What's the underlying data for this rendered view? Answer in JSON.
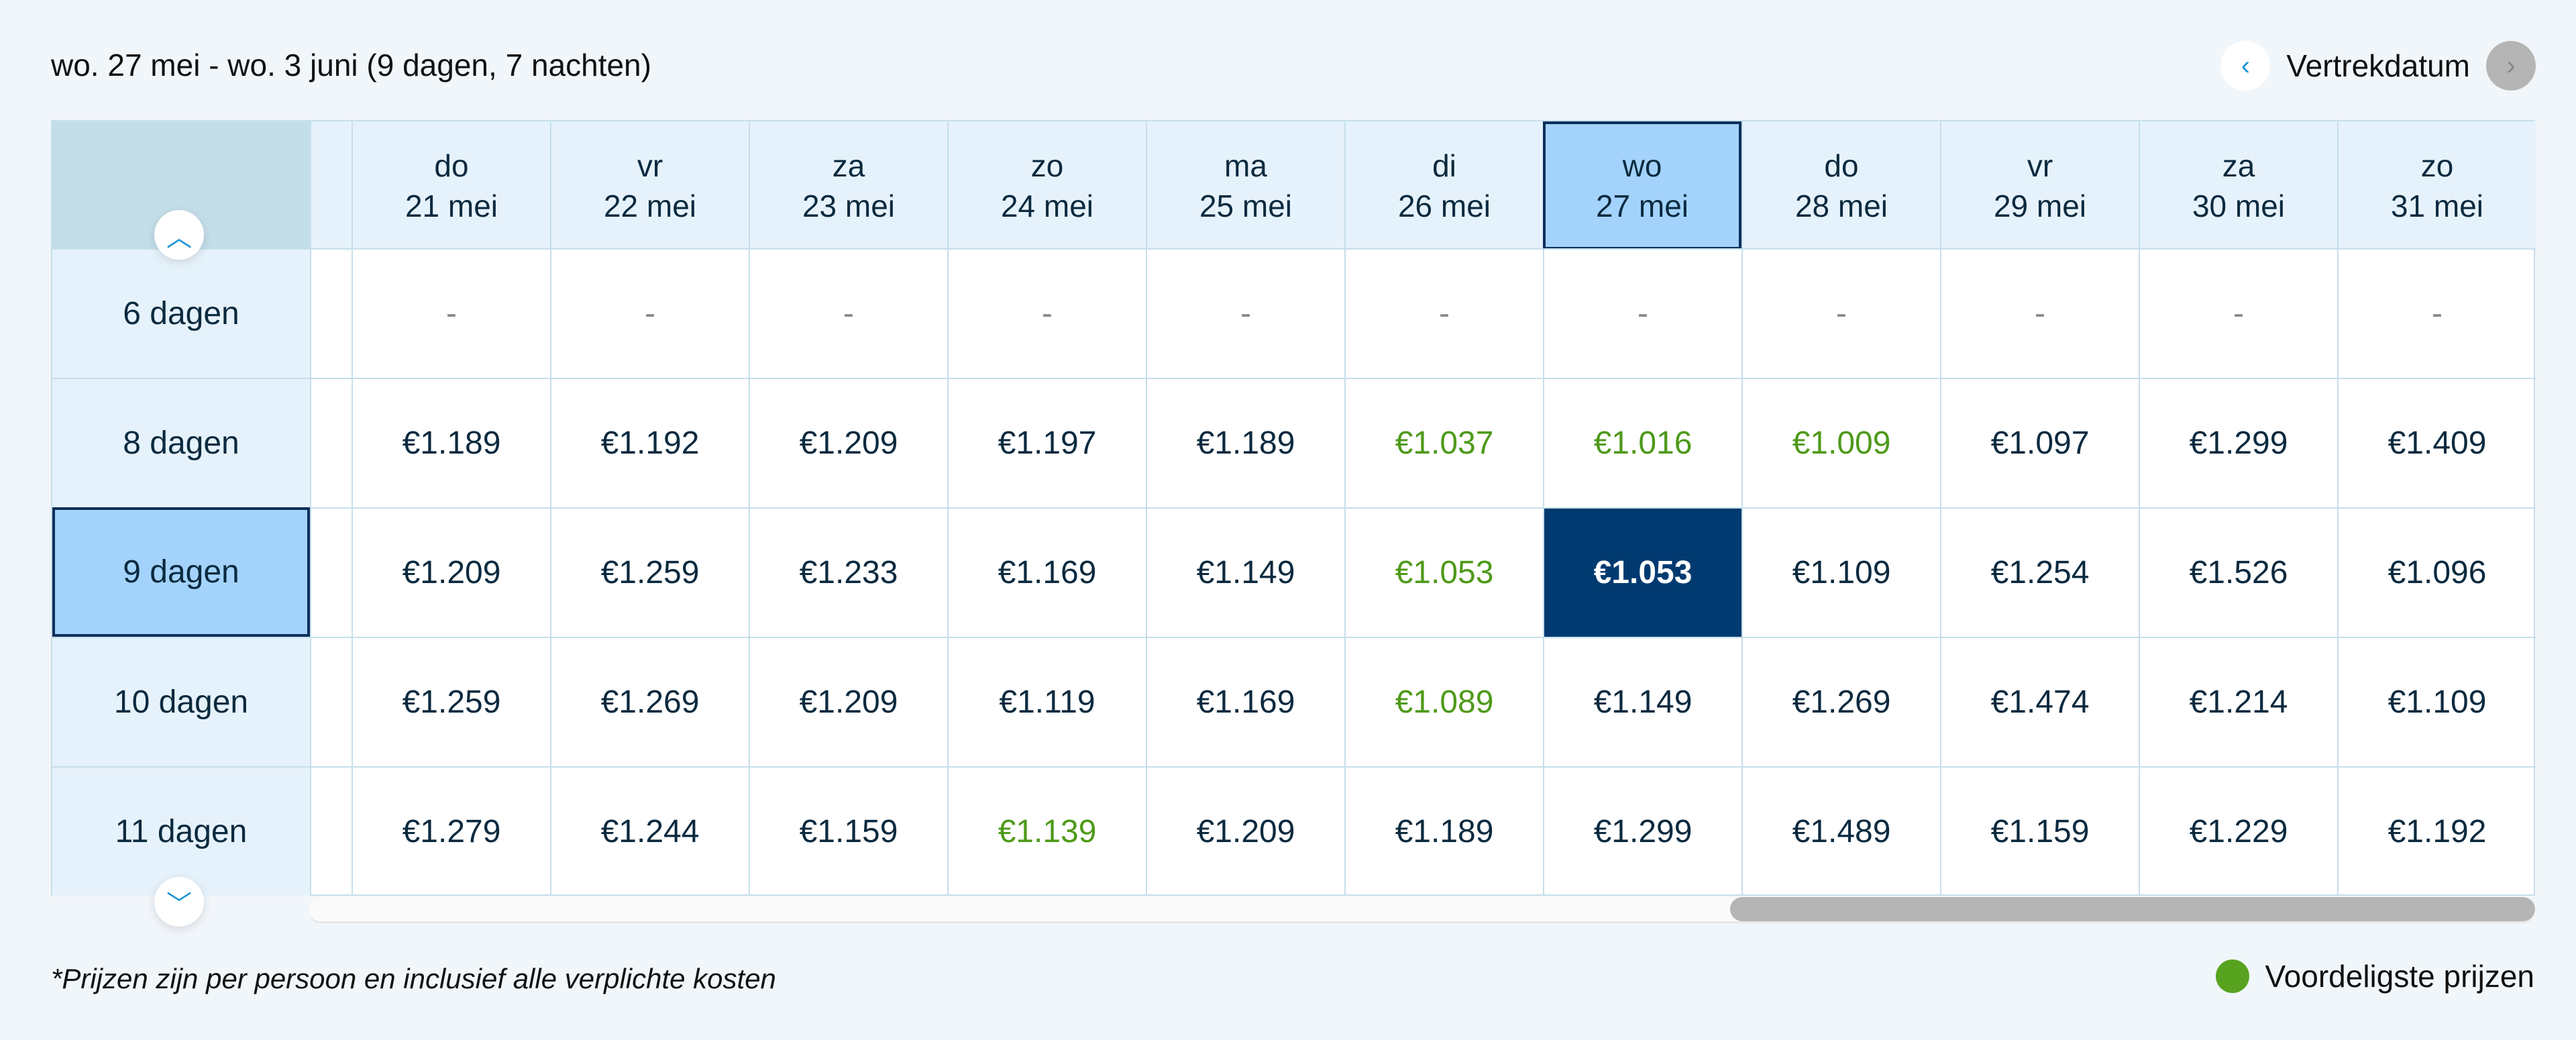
{
  "header": {
    "title": "wo. 27 mei - wo. 3 juni (9 dagen, 7 nachten)",
    "nav_label": "Vertrekdatum",
    "prev_icon": "chevron-left-icon",
    "next_icon": "chevron-right-icon"
  },
  "columns": [
    {
      "day": "do",
      "date": "21 mei"
    },
    {
      "day": "vr",
      "date": "22 mei"
    },
    {
      "day": "za",
      "date": "23 mei"
    },
    {
      "day": "zo",
      "date": "24 mei"
    },
    {
      "day": "ma",
      "date": "25 mei"
    },
    {
      "day": "di",
      "date": "26 mei"
    },
    {
      "day": "wo",
      "date": "27 mei",
      "selected": true
    },
    {
      "day": "do",
      "date": "28 mei"
    },
    {
      "day": "vr",
      "date": "29 mei"
    },
    {
      "day": "za",
      "date": "30 mei"
    },
    {
      "day": "zo",
      "date": "31 mei"
    }
  ],
  "rows": [
    {
      "label": "6 dagen",
      "cells": [
        {
          "price": "-"
        },
        {
          "price": "-"
        },
        {
          "price": "-"
        },
        {
          "price": "-"
        },
        {
          "price": "-"
        },
        {
          "price": "-"
        },
        {
          "price": "-"
        },
        {
          "price": "-"
        },
        {
          "price": "-"
        },
        {
          "price": "-"
        },
        {
          "price": "-"
        }
      ]
    },
    {
      "label": "8 dagen",
      "cells": [
        {
          "price": "€1.189"
        },
        {
          "price": "€1.192"
        },
        {
          "price": "€1.209"
        },
        {
          "price": "€1.197"
        },
        {
          "price": "€1.189"
        },
        {
          "price": "€1.037",
          "cheap": true
        },
        {
          "price": "€1.016",
          "cheap": true
        },
        {
          "price": "€1.009",
          "cheap": true
        },
        {
          "price": "€1.097"
        },
        {
          "price": "€1.299"
        },
        {
          "price": "€1.409"
        }
      ]
    },
    {
      "label": "9 dagen",
      "selected": true,
      "cells": [
        {
          "price": "€1.209"
        },
        {
          "price": "€1.259"
        },
        {
          "price": "€1.233"
        },
        {
          "price": "€1.169"
        },
        {
          "price": "€1.149"
        },
        {
          "price": "€1.053",
          "cheap": true
        },
        {
          "price": "€1.053",
          "selected": true
        },
        {
          "price": "€1.109"
        },
        {
          "price": "€1.254"
        },
        {
          "price": "€1.526"
        },
        {
          "price": "€1.096"
        }
      ]
    },
    {
      "label": "10 dagen",
      "cells": [
        {
          "price": "€1.259"
        },
        {
          "price": "€1.269"
        },
        {
          "price": "€1.209"
        },
        {
          "price": "€1.119"
        },
        {
          "price": "€1.169"
        },
        {
          "price": "€1.089",
          "cheap": true
        },
        {
          "price": "€1.149"
        },
        {
          "price": "€1.269"
        },
        {
          "price": "€1.474"
        },
        {
          "price": "€1.214"
        },
        {
          "price": "€1.109"
        }
      ]
    },
    {
      "label": "11 dagen",
      "cells": [
        {
          "price": "€1.279"
        },
        {
          "price": "€1.244"
        },
        {
          "price": "€1.159"
        },
        {
          "price": "€1.139",
          "cheap": true
        },
        {
          "price": "€1.209"
        },
        {
          "price": "€1.189"
        },
        {
          "price": "€1.299"
        },
        {
          "price": "€1.489"
        },
        {
          "price": "€1.159"
        },
        {
          "price": "€1.229"
        },
        {
          "price": "€1.192"
        }
      ]
    }
  ],
  "scroll": {
    "up_icon": "chevron-up-icon",
    "down_icon": "chevron-down-icon",
    "horizontal_position_percent": 100
  },
  "footer": {
    "note": "*Prijzen zijn per persoon en inclusief alle verplichte kosten",
    "legend_label": "Voordeligste prijzen",
    "legend_color": "#57a31f"
  },
  "colors": {
    "cheap": "#4e9a1a",
    "selected_cell": "#003a70",
    "selected_header": "#a3d3fb"
  }
}
